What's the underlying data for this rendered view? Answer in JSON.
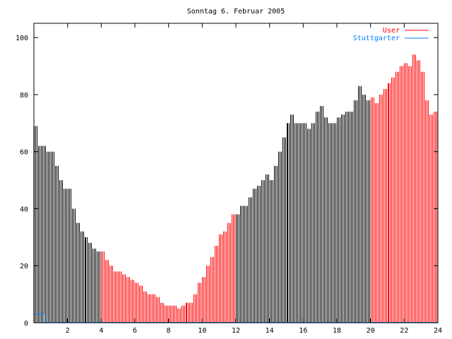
{
  "chart_data": {
    "type": "bar",
    "title": "Sonntag 6. Februar 2005",
    "xlabel": "",
    "ylabel": "",
    "xlim": [
      0,
      24
    ],
    "ylim": [
      0,
      105
    ],
    "x_ticks": [
      2,
      4,
      6,
      8,
      10,
      12,
      14,
      16,
      18,
      20,
      22,
      24
    ],
    "y_ticks": [
      0,
      20,
      40,
      60,
      80,
      100
    ],
    "legend_position": "top-right",
    "interval_hours": 0.25,
    "series": [
      {
        "name": "User",
        "color": "#ff0000",
        "alt_color": "#000000",
        "values": [
          69,
          62,
          62,
          60,
          60,
          55,
          50,
          47,
          47,
          40,
          35,
          32,
          30,
          28,
          26,
          25,
          25,
          22,
          20,
          18,
          18,
          17,
          16,
          15,
          14,
          13,
          11,
          10,
          10,
          9,
          7,
          6,
          6,
          6,
          5,
          6,
          7,
          7,
          10,
          14,
          16,
          20,
          23,
          27,
          31,
          32,
          35,
          38,
          38,
          41,
          41,
          44,
          47,
          48,
          50,
          52,
          50,
          55,
          60,
          65,
          70,
          73,
          70,
          70,
          70,
          68,
          70,
          74,
          76,
          72,
          70,
          70,
          72,
          73,
          74,
          74,
          78,
          83,
          80,
          78,
          79,
          77,
          80,
          82,
          84,
          86,
          88,
          90,
          91,
          90,
          94,
          92,
          88,
          78,
          73,
          74
        ]
      },
      {
        "name": "Stuttgarter",
        "color": "#0080ff",
        "points": [
          [
            0,
            3
          ],
          [
            0.6,
            3
          ],
          [
            0.6,
            0
          ],
          [
            24,
            0
          ]
        ]
      }
    ]
  }
}
